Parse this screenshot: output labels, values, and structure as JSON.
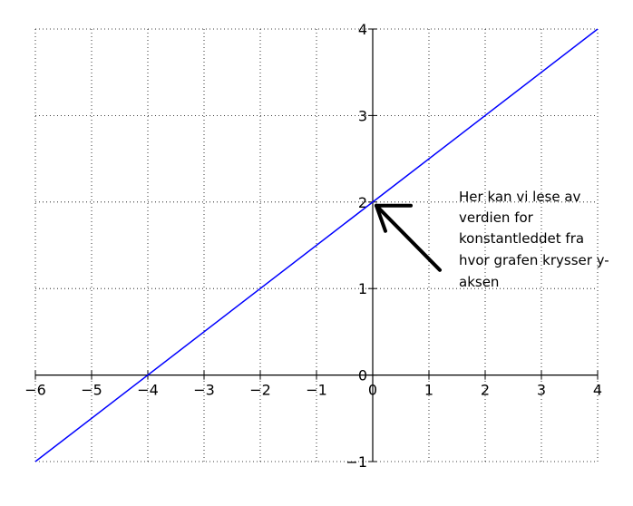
{
  "chart_data": {
    "type": "line",
    "title": "",
    "xlabel": "",
    "ylabel": "",
    "xlim": [
      -6,
      4
    ],
    "ylim": [
      -1,
      4
    ],
    "grid": true,
    "x_ticks": [
      -6,
      -5,
      -4,
      -3,
      -2,
      -1,
      0,
      1,
      2,
      3,
      4
    ],
    "x_tick_labels": [
      "−6",
      "−5",
      "−4",
      "−3",
      "−2",
      "−1",
      "0",
      "1",
      "2",
      "3",
      "4"
    ],
    "y_ticks": [
      -1,
      0,
      1,
      2,
      3,
      4
    ],
    "y_tick_labels": [
      "−1",
      "0",
      "1",
      "2",
      "3",
      "4"
    ],
    "series": [
      {
        "x": [
          -6,
          4
        ],
        "y": [
          -1,
          4
        ],
        "color": "#0000ff"
      }
    ],
    "annotation": {
      "lines": [
        "Her kan vi lese av",
        "verdien for",
        "konstantleddet fra",
        "hvor grafen krysser y-",
        "aksen"
      ],
      "arrow_points_to": [
        0,
        2
      ],
      "arrow_color": "#000000"
    }
  }
}
